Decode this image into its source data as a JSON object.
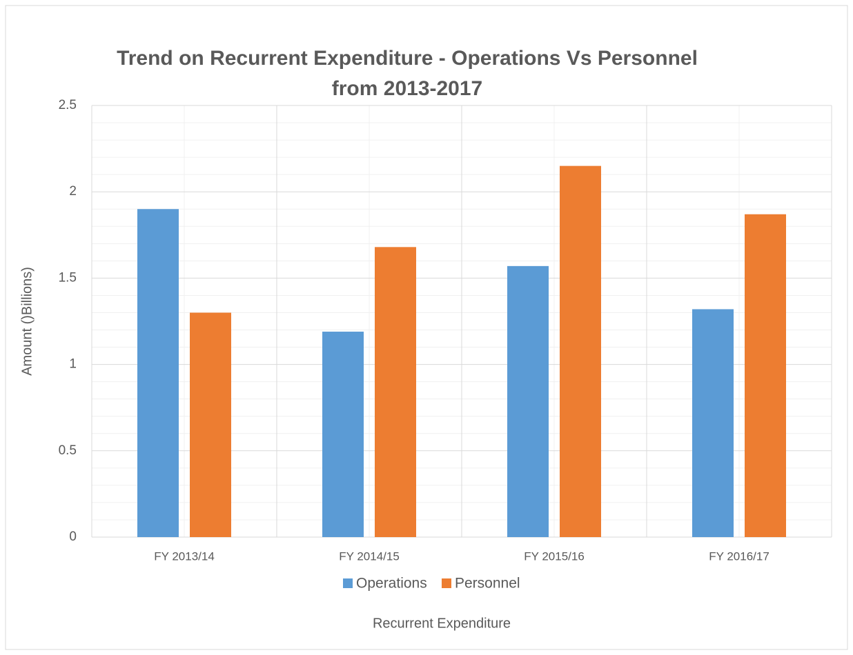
{
  "chart_data": {
    "type": "bar",
    "title": [
      "Trend on Recurrent Expenditure - Operations Vs Personnel",
      "from 2013-2017"
    ],
    "x_label": "Recurrent Expenditure",
    "y_label": "Amount ()Billions)",
    "categories": [
      "FY 2013/14",
      "FY 2014/15",
      "FY 2015/16",
      "FY 2016/17"
    ],
    "series": [
      {
        "name": "Operations",
        "color": "#5b9bd5",
        "values": [
          1.9,
          1.19,
          1.57,
          1.32
        ]
      },
      {
        "name": "Personnel",
        "color": "#ed7d31",
        "values": [
          1.3,
          1.68,
          2.15,
          1.87
        ]
      }
    ],
    "ylim": [
      0,
      2.5
    ],
    "yticks": [
      0,
      0.5,
      1,
      1.5,
      2,
      2.5
    ],
    "grid": true,
    "legend": "bottom"
  }
}
